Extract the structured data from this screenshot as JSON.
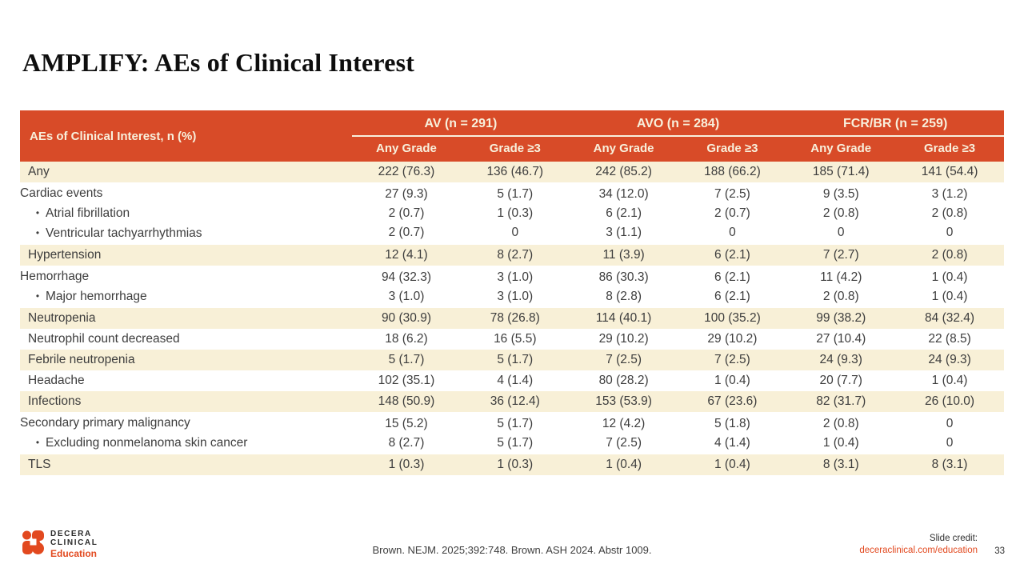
{
  "slide": {
    "title": "AMPLIFY: AEs of Clinical Interest"
  },
  "table": {
    "corner_header": "AEs of Clinical Interest, n (%)",
    "group_headers": [
      "AV (n = 291)",
      "AVO (n = 284)",
      "FCR/BR (n = 259)"
    ],
    "sub_headers": [
      "Any Grade",
      "Grade ≥3",
      "Any Grade",
      "Grade ≥3",
      "Any Grade",
      "Grade ≥3"
    ],
    "rows": [
      {
        "label": "Any",
        "bullets": [],
        "shaded": true,
        "cells": [
          [
            "222 (76.3)"
          ],
          [
            "136 (46.7)"
          ],
          [
            "242 (85.2)"
          ],
          [
            "188 (66.2)"
          ],
          [
            "185 (71.4)"
          ],
          [
            "141 (54.4)"
          ]
        ]
      },
      {
        "label": "Cardiac events",
        "bullets": [
          "Atrial fibrillation",
          "Ventricular tachyarrhythmias"
        ],
        "shaded": false,
        "cells": [
          [
            "27 (9.3)",
            "2 (0.7)",
            "2 (0.7)"
          ],
          [
            "5 (1.7)",
            "1 (0.3)",
            "0"
          ],
          [
            "34 (12.0)",
            "6 (2.1)",
            "3 (1.1)"
          ],
          [
            "7 (2.5)",
            "2 (0.7)",
            "0"
          ],
          [
            "9 (3.5)",
            "2 (0.8)",
            "0"
          ],
          [
            "3 (1.2)",
            "2 (0.8)",
            "0"
          ]
        ]
      },
      {
        "label": "Hypertension",
        "bullets": [],
        "shaded": true,
        "cells": [
          [
            "12 (4.1)"
          ],
          [
            "8 (2.7)"
          ],
          [
            "11 (3.9)"
          ],
          [
            "6 (2.1)"
          ],
          [
            "7 (2.7)"
          ],
          [
            "2 (0.8)"
          ]
        ]
      },
      {
        "label": "Hemorrhage",
        "bullets": [
          "Major hemorrhage"
        ],
        "shaded": false,
        "cells": [
          [
            "94 (32.3)",
            "3 (1.0)"
          ],
          [
            "3 (1.0)",
            "3 (1.0)"
          ],
          [
            "86 (30.3)",
            "8 (2.8)"
          ],
          [
            "6 (2.1)",
            "6 (2.1)"
          ],
          [
            "11 (4.2)",
            "2 (0.8)"
          ],
          [
            "1 (0.4)",
            "1 (0.4)"
          ]
        ]
      },
      {
        "label": "Neutropenia",
        "bullets": [],
        "shaded": true,
        "cells": [
          [
            "90 (30.9)"
          ],
          [
            "78 (26.8)"
          ],
          [
            "114 (40.1)"
          ],
          [
            "100 (35.2)"
          ],
          [
            "99 (38.2)"
          ],
          [
            "84 (32.4)"
          ]
        ]
      },
      {
        "label": "Neutrophil count decreased",
        "bullets": [],
        "shaded": false,
        "cells": [
          [
            "18 (6.2)"
          ],
          [
            "16 (5.5)"
          ],
          [
            "29 (10.2)"
          ],
          [
            "29 (10.2)"
          ],
          [
            "27 (10.4)"
          ],
          [
            "22 (8.5)"
          ]
        ]
      },
      {
        "label": "Febrile neutropenia",
        "bullets": [],
        "shaded": true,
        "cells": [
          [
            "5 (1.7)"
          ],
          [
            "5 (1.7)"
          ],
          [
            "7 (2.5)"
          ],
          [
            "7 (2.5)"
          ],
          [
            "24 (9.3)"
          ],
          [
            "24 (9.3)"
          ]
        ]
      },
      {
        "label": "Headache",
        "bullets": [],
        "shaded": false,
        "cells": [
          [
            "102 (35.1)"
          ],
          [
            "4 (1.4)"
          ],
          [
            "80 (28.2)"
          ],
          [
            "1 (0.4)"
          ],
          [
            "20 (7.7)"
          ],
          [
            "1 (0.4)"
          ]
        ]
      },
      {
        "label": "Infections",
        "bullets": [],
        "shaded": true,
        "cells": [
          [
            "148 (50.9)"
          ],
          [
            "36 (12.4)"
          ],
          [
            "153 (53.9)"
          ],
          [
            "67 (23.6)"
          ],
          [
            "82 (31.7)"
          ],
          [
            "26 (10.0)"
          ]
        ]
      },
      {
        "label": "Secondary primary malignancy",
        "bullets": [
          "Excluding nonmelanoma skin cancer"
        ],
        "shaded": false,
        "cells": [
          [
            "15 (5.2)",
            "8 (2.7)"
          ],
          [
            "5 (1.7)",
            "5 (1.7)"
          ],
          [
            "12 (4.2)",
            "7 (2.5)"
          ],
          [
            "5 (1.8)",
            "4 (1.4)"
          ],
          [
            "2 (0.8)",
            "1 (0.4)"
          ],
          [
            "0",
            "0"
          ]
        ]
      },
      {
        "label": "TLS",
        "bullets": [],
        "shaded": true,
        "cells": [
          [
            "1 (0.3)"
          ],
          [
            "1 (0.3)"
          ],
          [
            "1 (0.4)"
          ],
          [
            "1 (0.4)"
          ],
          [
            "8 (3.1)"
          ],
          [
            "8 (3.1)"
          ]
        ]
      }
    ]
  },
  "footer": {
    "logo_line1": "DECERA",
    "logo_line2": "CLINICAL",
    "logo_line3": "Education",
    "reference": "Brown. NEJM. 2025;392:748. Brown. ASH 2024. Abstr 1009.",
    "credit_label": "Slide credit:",
    "credit_link": "deceraclinical.com/education",
    "page_number": "33"
  },
  "colors": {
    "header_bg": "#D84B28",
    "header_text": "#F8F0DC",
    "shaded_row_bg": "#F8F0D7",
    "accent_orange": "#E2491F",
    "body_text": "#3D3D3D"
  }
}
